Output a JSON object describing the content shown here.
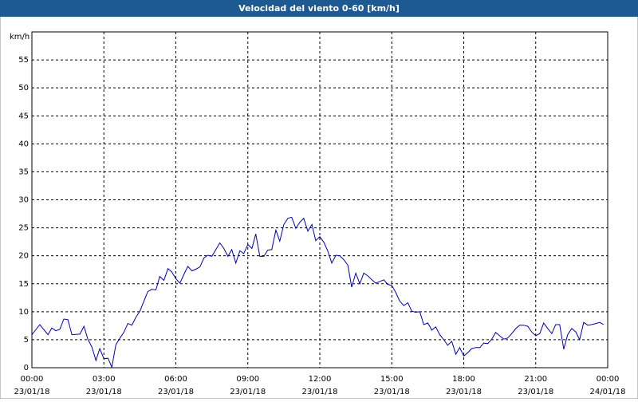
{
  "chart_data": {
    "type": "line",
    "title": "Velocidad del viento 0-60 [km/h]",
    "y_label": "km/h",
    "xlim": [
      0,
      24
    ],
    "xticks": [
      {
        "value": 0,
        "label": "00:00",
        "sublabel": "23/01/18"
      },
      {
        "value": 3,
        "label": "03:00",
        "sublabel": "23/01/18"
      },
      {
        "value": 6,
        "label": "06:00",
        "sublabel": "23/01/18"
      },
      {
        "value": 9,
        "label": "09:00",
        "sublabel": "23/01/18"
      },
      {
        "value": 12,
        "label": "12:00",
        "sublabel": "23/01/18"
      },
      {
        "value": 15,
        "label": "15:00",
        "sublabel": "23/01/18"
      },
      {
        "value": 18,
        "label": "18:00",
        "sublabel": "23/01/18"
      },
      {
        "value": 21,
        "label": "21:00",
        "sublabel": "23/01/18"
      },
      {
        "value": 24,
        "label": "00:00",
        "sublabel": "24/01/18"
      }
    ],
    "ylim": [
      0,
      60
    ],
    "yticks": [
      0,
      5,
      10,
      15,
      20,
      25,
      30,
      35,
      40,
      45,
      50,
      55
    ],
    "grid": true,
    "series": [
      {
        "color": "#0000b0",
        "x": [
          0,
          0.33,
          0.67,
          0.83,
          1.0,
          1.17,
          1.33,
          1.5,
          1.67,
          2.0,
          2.17,
          2.33,
          2.5,
          2.67,
          2.83,
          3.0,
          3.17,
          3.33,
          3.5,
          3.67,
          3.83,
          4.0,
          4.17,
          4.33,
          4.5,
          4.67,
          4.83,
          5.0,
          5.17,
          5.33,
          5.5,
          5.67,
          5.83,
          6.0,
          6.17,
          6.33,
          6.5,
          6.67,
          6.83,
          7.0,
          7.17,
          7.33,
          7.5,
          7.67,
          7.83,
          8.0,
          8.17,
          8.33,
          8.5,
          8.67,
          8.83,
          9.0,
          9.17,
          9.33,
          9.5,
          9.67,
          9.83,
          10.0,
          10.17,
          10.33,
          10.5,
          10.67,
          10.83,
          11.0,
          11.17,
          11.33,
          11.5,
          11.67,
          11.83,
          12.0,
          12.17,
          12.33,
          12.5,
          12.67,
          12.83,
          13.0,
          13.17,
          13.33,
          13.5,
          13.67,
          13.83,
          14.0,
          14.17,
          14.33,
          14.5,
          14.67,
          14.83,
          15.0,
          15.17,
          15.33,
          15.5,
          15.67,
          15.83,
          16.0,
          16.17,
          16.33,
          16.5,
          16.67,
          16.83,
          17.0,
          17.17,
          17.33,
          17.5,
          17.67,
          17.83,
          18.0,
          18.17,
          18.33,
          18.5,
          18.67,
          18.83,
          19.0,
          19.17,
          19.33,
          19.5,
          19.67,
          19.83,
          20.0,
          20.17,
          20.33,
          20.5,
          20.67,
          20.83,
          21.0,
          21.17,
          21.33,
          21.5,
          21.67,
          21.83,
          22.0,
          22.17,
          22.33,
          22.5,
          22.67,
          22.83,
          23.0,
          23.17,
          23.33,
          23.5,
          23.67,
          23.83
        ],
        "values": [
          5.9,
          7.7,
          5.9,
          7.1,
          6.6,
          6.9,
          8.7,
          8.6,
          5.9,
          6.0,
          7.4,
          5.1,
          3.7,
          1.3,
          3.4,
          1.6,
          1.7,
          0.1,
          4.1,
          5.3,
          6.3,
          7.9,
          7.6,
          9.0,
          10.1,
          11.9,
          13.6,
          14.0,
          13.9,
          16.3,
          15.6,
          17.7,
          17.1,
          15.9,
          15.1,
          16.6,
          18.1,
          17.3,
          17.6,
          18.0,
          19.6,
          20.1,
          19.9,
          21.1,
          22.3,
          21.3,
          19.9,
          21.1,
          18.7,
          20.9,
          20.4,
          22.0,
          21.3,
          23.9,
          19.9,
          19.9,
          21.0,
          21.1,
          24.6,
          22.6,
          25.6,
          26.7,
          26.9,
          24.9,
          26.0,
          26.7,
          24.4,
          25.6,
          22.7,
          23.4,
          22.4,
          20.9,
          18.7,
          20.1,
          20.0,
          19.3,
          18.3,
          14.4,
          16.9,
          15.0,
          16.9,
          16.4,
          15.7,
          15.1,
          15.4,
          15.7,
          14.9,
          14.7,
          13.4,
          11.9,
          11.1,
          11.6,
          10.1,
          9.9,
          10.0,
          7.7,
          8.0,
          6.7,
          7.3,
          5.9,
          5.0,
          4.0,
          4.7,
          2.4,
          3.6,
          2.1,
          2.7,
          3.4,
          3.6,
          3.6,
          4.4,
          4.3,
          5.1,
          6.3,
          5.7,
          5.1,
          5.3,
          6.1,
          7.0,
          7.6,
          7.6,
          7.4,
          6.4,
          5.7,
          6.1,
          8.0,
          7.0,
          6.1,
          7.7,
          7.7,
          3.3,
          5.9,
          7.0,
          6.4,
          5.0,
          8.1,
          7.6,
          7.7,
          7.9,
          8.1,
          7.7
        ]
      }
    ]
  }
}
